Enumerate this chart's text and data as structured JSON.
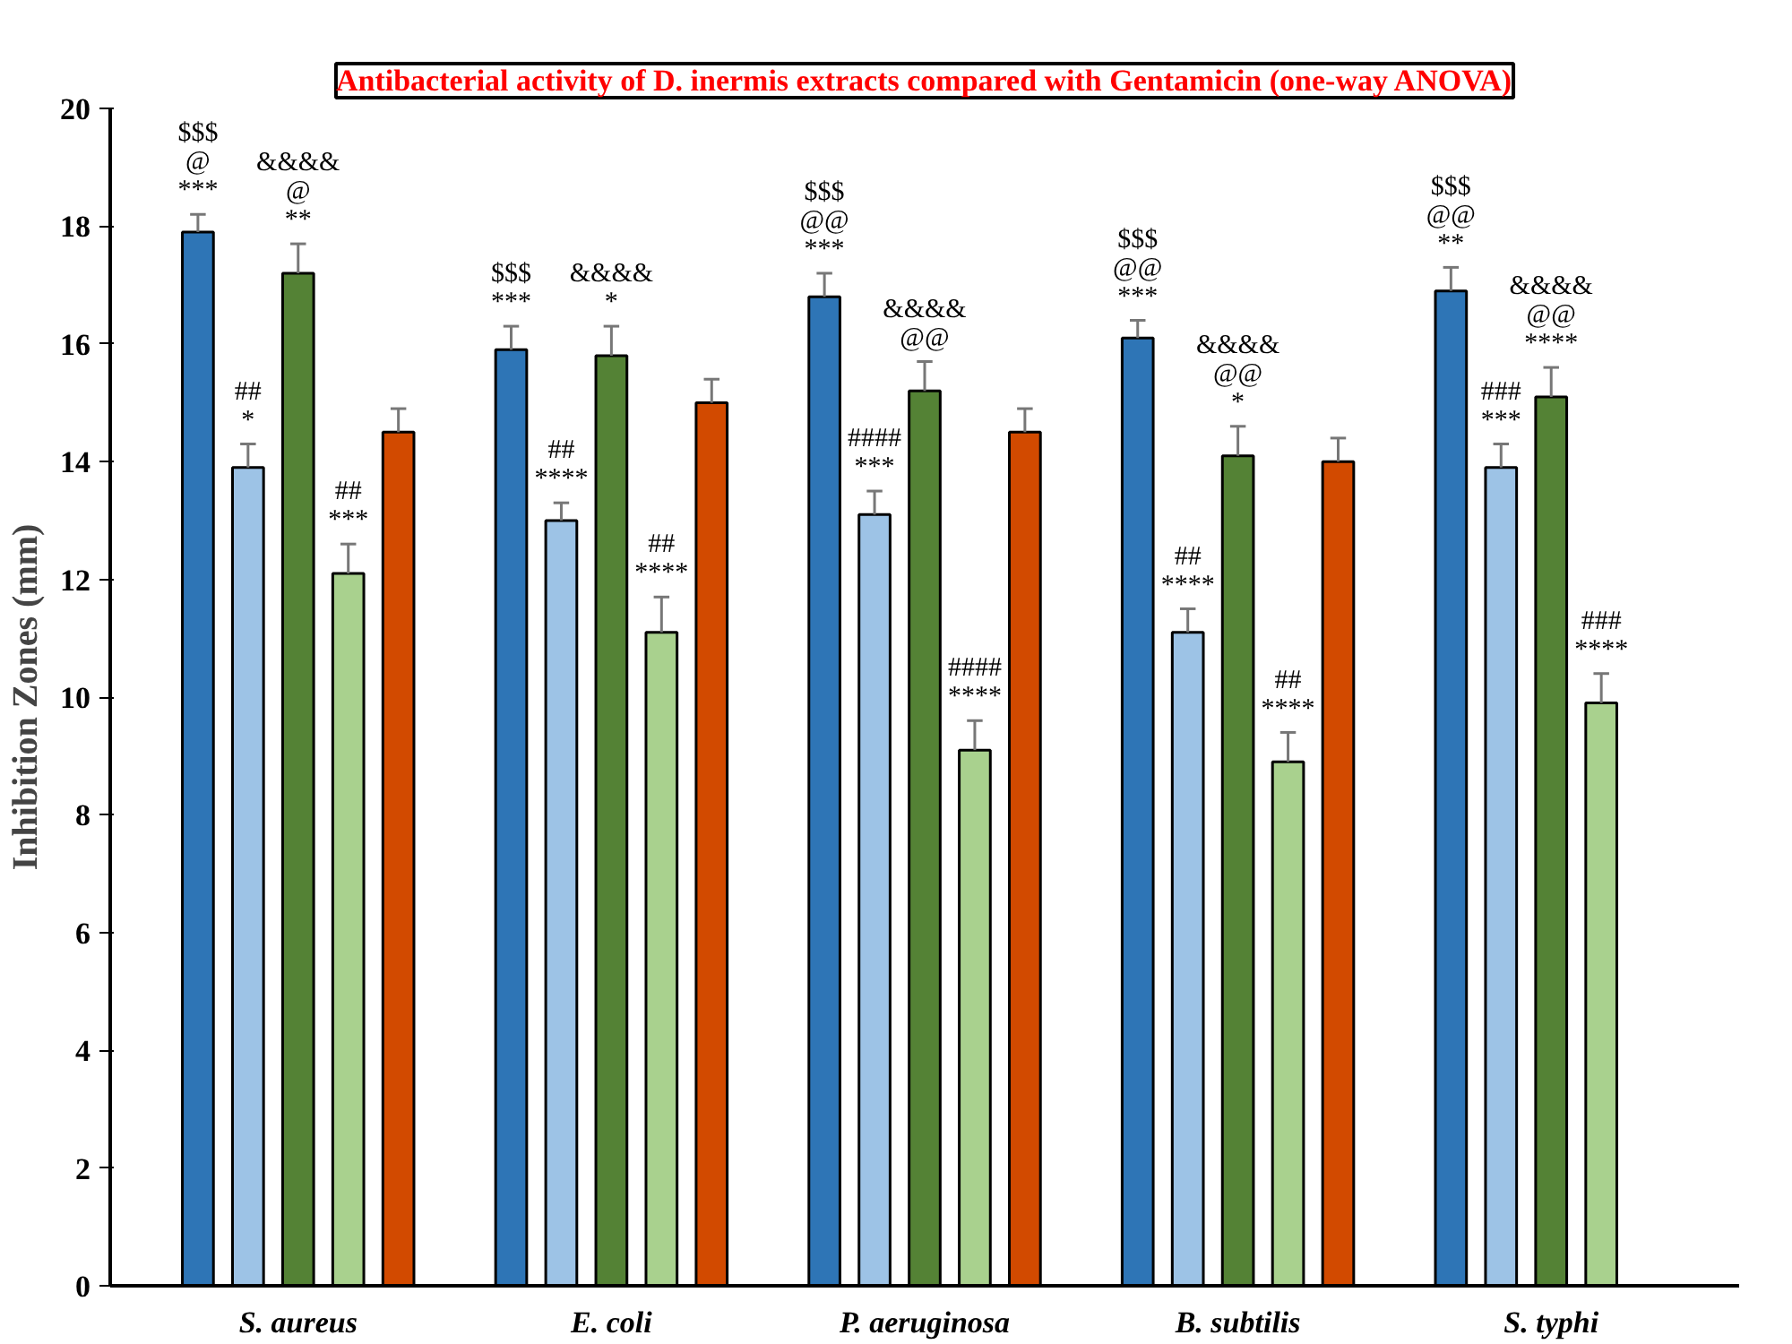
{
  "chart_data": {
    "type": "bar",
    "title": "Antibacterial activity of D. inermis extracts compared with Gentamicin (one-way ANOVA)",
    "ylabel": "Inhibition Zones (mm)",
    "categories": [
      "S. aureus",
      "E. coli",
      "P. aeruginosa",
      "B. subtilis",
      "S. typhi"
    ],
    "ylim": [
      0,
      20
    ],
    "yticks": [
      0,
      2,
      4,
      6,
      8,
      10,
      12,
      14,
      16,
      18,
      20
    ],
    "grid": false,
    "series": [
      {
        "color": "#2e75b6",
        "values": [
          17.9,
          15.9,
          16.8,
          16.1,
          16.9
        ],
        "errors": [
          [
            17.9,
            18.2
          ],
          [
            15.9,
            16.3
          ],
          [
            16.8,
            17.2
          ],
          [
            16.1,
            16.4
          ],
          [
            16.9,
            17.3
          ]
        ],
        "value_labels": [
          "$$$\n@\n***",
          "$$$\n***",
          "$$$\n@@\n***",
          "$$$\n@@\n***",
          "$$$\n@@\n**"
        ]
      },
      {
        "color": "#9dc3e6",
        "values": [
          13.9,
          13.0,
          13.1,
          11.1,
          13.9
        ],
        "errors": [
          [
            13.9,
            14.3
          ],
          [
            13.0,
            13.3
          ],
          [
            13.1,
            13.5
          ],
          [
            11.1,
            11.5
          ],
          [
            13.9,
            14.3
          ]
        ],
        "value_labels": [
          "##\n*",
          "##\n****",
          "####\n***",
          "##\n****",
          "###\n***"
        ]
      },
      {
        "color": "#548235",
        "values": [
          17.2,
          15.8,
          15.2,
          14.1,
          15.1
        ],
        "errors": [
          [
            17.2,
            17.7
          ],
          [
            15.8,
            16.3
          ],
          [
            15.2,
            15.7
          ],
          [
            14.1,
            14.6
          ],
          [
            15.1,
            15.6
          ]
        ],
        "value_labels": [
          "&&&&\n@\n**",
          "&&&&\n*",
          "&&&&\n@@",
          "&&&&\n@@\n*",
          "&&&&\n@@\n****"
        ]
      },
      {
        "color": "#a9d18e",
        "values": [
          12.1,
          11.1,
          9.1,
          8.9,
          9.9
        ],
        "errors": [
          [
            12.1,
            12.6
          ],
          [
            11.1,
            11.7
          ],
          [
            9.1,
            9.6
          ],
          [
            8.9,
            9.4
          ],
          [
            9.9,
            10.4
          ]
        ],
        "value_labels": [
          "##\n***",
          "##\n****",
          "####\n****",
          "##\n****",
          "###\n****"
        ]
      },
      {
        "color": "#d24a00",
        "values": [
          14.5,
          15.0,
          14.5,
          14.0,
          null
        ],
        "errors": [
          [
            14.5,
            14.9
          ],
          [
            15.0,
            15.4
          ],
          [
            14.5,
            14.9
          ],
          [
            14.0,
            14.4
          ],
          null
        ]
      }
    ]
  }
}
